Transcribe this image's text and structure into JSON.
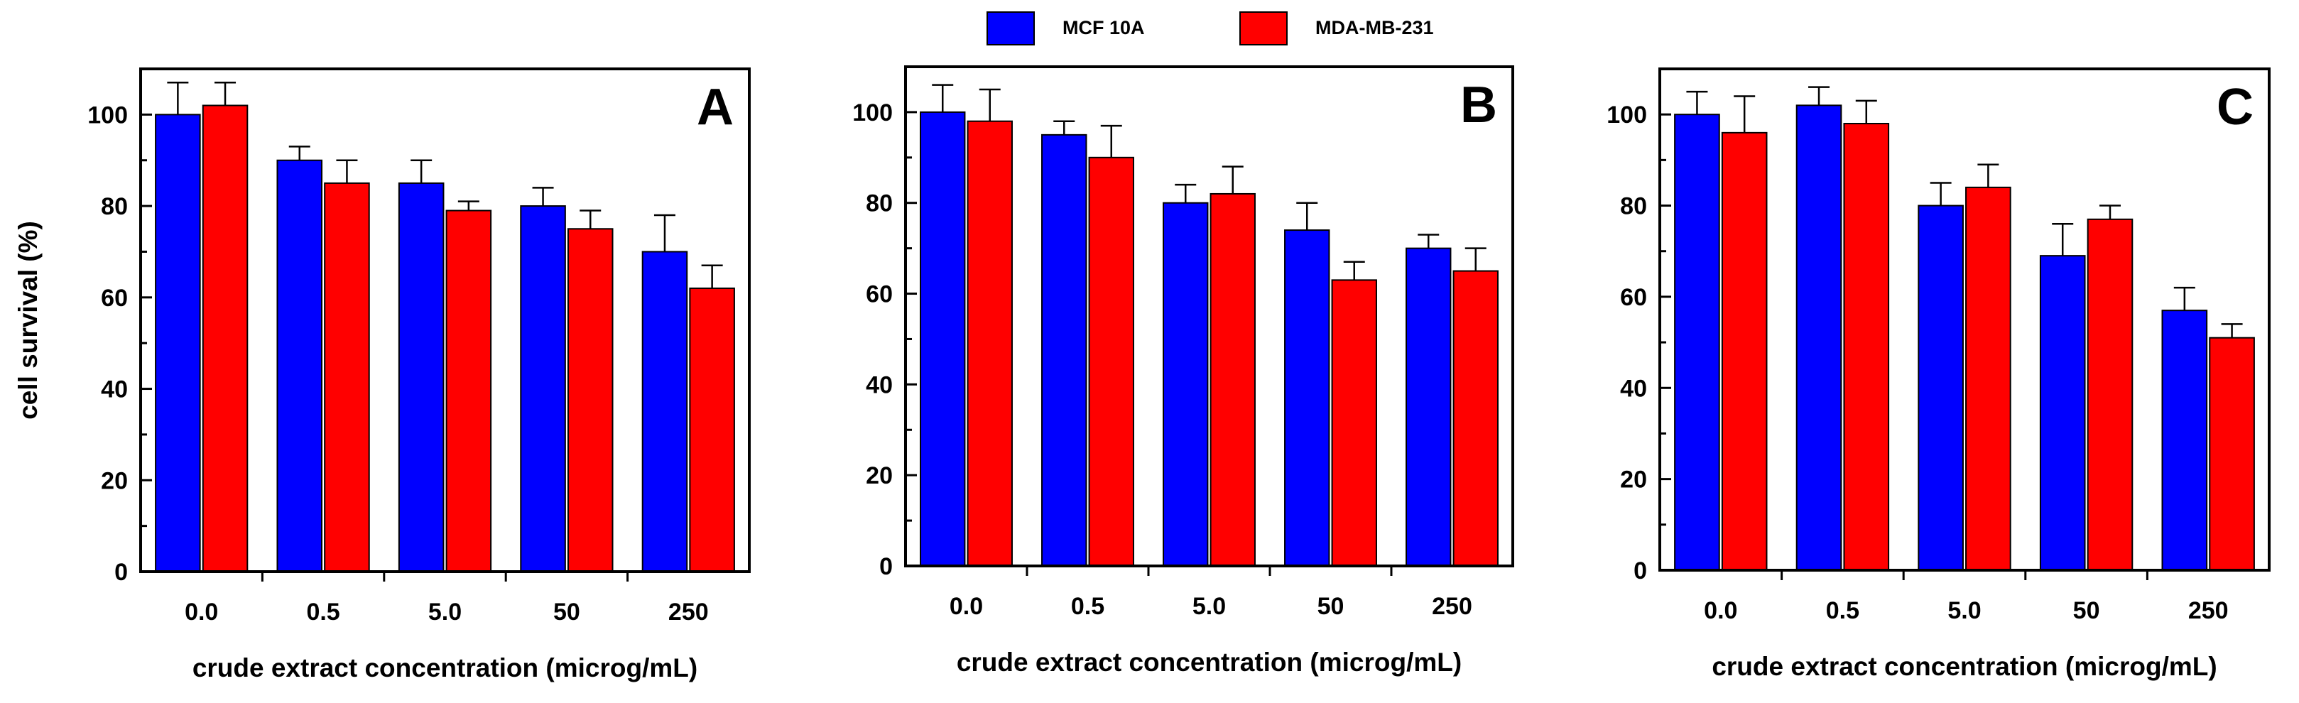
{
  "legend": {
    "entries": [
      {
        "name": "MCF 10A",
        "color": "#0000ff"
      },
      {
        "name": "MDA-MB-231",
        "color": "#ff0000"
      }
    ]
  },
  "chart_data": [
    {
      "type": "bar",
      "panel_label": "A",
      "categories": [
        "0.0",
        "0.5",
        "5.0",
        "50",
        "250"
      ],
      "series": [
        {
          "name": "MCF 10A",
          "color": "#0000ff",
          "values": [
            100,
            90,
            85,
            80,
            70
          ],
          "errors": [
            7,
            3,
            5,
            4,
            8
          ]
        },
        {
          "name": "MDA-MB-231",
          "color": "#ff0000",
          "values": [
            102,
            85,
            79,
            75,
            62
          ],
          "errors": [
            5,
            5,
            2,
            4,
            5
          ]
        }
      ],
      "xlabel": "crude extract concentration (microg/mL)",
      "ylabel": "cell survival (%)",
      "ylim": [
        0,
        110
      ],
      "yticks": [
        0,
        20,
        40,
        60,
        80,
        100
      ]
    },
    {
      "type": "bar",
      "panel_label": "B",
      "categories": [
        "0.0",
        "0.5",
        "5.0",
        "50",
        "250"
      ],
      "series": [
        {
          "name": "MCF 10A",
          "color": "#0000ff",
          "values": [
            100,
            95,
            80,
            74,
            70
          ],
          "errors": [
            6,
            3,
            4,
            6,
            3
          ]
        },
        {
          "name": "MDA-MB-231",
          "color": "#ff0000",
          "values": [
            98,
            90,
            82,
            63,
            65
          ],
          "errors": [
            7,
            7,
            6,
            4,
            5
          ]
        }
      ],
      "xlabel": "crude extract concentration (microg/mL)",
      "ylabel": "",
      "ylim": [
        0,
        110
      ],
      "yticks": [
        0,
        20,
        40,
        60,
        80,
        100
      ]
    },
    {
      "type": "bar",
      "panel_label": "C",
      "categories": [
        "0.0",
        "0.5",
        "5.0",
        "50",
        "250"
      ],
      "series": [
        {
          "name": "MCF 10A",
          "color": "#0000ff",
          "values": [
            100,
            102,
            80,
            69,
            57
          ],
          "errors": [
            5,
            4,
            5,
            7,
            5
          ]
        },
        {
          "name": "MDA-MB-231",
          "color": "#ff0000",
          "values": [
            96,
            98,
            84,
            77,
            51
          ],
          "errors": [
            8,
            5,
            5,
            3,
            3
          ]
        }
      ],
      "xlabel": "crude extract concentration (microg/mL)",
      "ylabel": "",
      "ylim": [
        0,
        110
      ],
      "yticks": [
        0,
        20,
        40,
        60,
        80,
        100
      ]
    }
  ]
}
